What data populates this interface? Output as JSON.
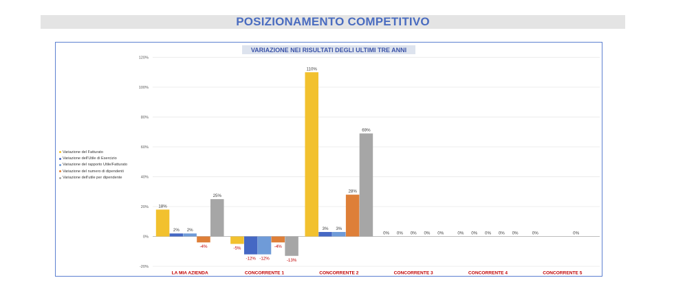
{
  "header": {
    "title": "POSIZIONAMENTO COMPETITIVO"
  },
  "colors": {
    "fatturato": "#f2c12e",
    "utile_esercizio": "#4568c4",
    "rapporto": "#6f9bd8",
    "dipendenti": "#de7f38",
    "utile_dipendente": "#a6a6a6",
    "category_label": "#c00000",
    "negative_label": "#c00000"
  },
  "chart_data": {
    "type": "bar",
    "title": "VARIAZIONE NEI RISULTATI DEGLI ULTIMI TRE ANNI",
    "categories": [
      "LA MIA AZIENDA",
      "CONCORRENTE 1",
      "CONCORRENTE 2",
      "CONCORRENTE 3",
      "CONCORRENTE 4",
      "CONCORRENTE 5"
    ],
    "ylim": [
      -20,
      120
    ],
    "yticks": [
      -20,
      0,
      20,
      40,
      60,
      80,
      100,
      120
    ],
    "ytick_labels": [
      "-20%",
      "0%",
      "20%",
      "40%",
      "60%",
      "80%",
      "100%",
      "120%"
    ],
    "grid": true,
    "legend_position": "left",
    "series": [
      {
        "name": "Variazione del Fatturato",
        "color_key": "fatturato",
        "values": [
          18,
          -5,
          110,
          0,
          0,
          0
        ],
        "labels": [
          "18%",
          "-5%",
          "110%",
          "0%",
          "0%",
          "0%"
        ]
      },
      {
        "name": "Variazione dell'Utile di Esercizio",
        "color_key": "utile_esercizio",
        "values": [
          2,
          -12,
          3,
          0,
          0,
          null
        ],
        "labels": [
          "2%",
          "-12%",
          "3%",
          "0%",
          "0%",
          null
        ]
      },
      {
        "name": "Variazione del rapporto Utile/Fatturato",
        "color_key": "rapporto",
        "values": [
          2,
          -12,
          3,
          0,
          0,
          null
        ],
        "labels": [
          "2%",
          "-12%",
          "3%",
          "0%",
          "0%",
          null
        ]
      },
      {
        "name": "Variazione del numero di dipendenti",
        "color_key": "dipendenti",
        "values": [
          -4,
          -4,
          28,
          0,
          0,
          0
        ],
        "labels": [
          "-4%",
          "-4%",
          "28%",
          "0%",
          "0%",
          "0%"
        ]
      },
      {
        "name": "Variazione dell'utile per dipendente",
        "color_key": "utile_dipendente",
        "values": [
          25,
          -13,
          69,
          0,
          0,
          null
        ],
        "labels": [
          "25%",
          "-13%",
          "69%",
          "0%",
          "0%",
          null
        ]
      }
    ]
  }
}
